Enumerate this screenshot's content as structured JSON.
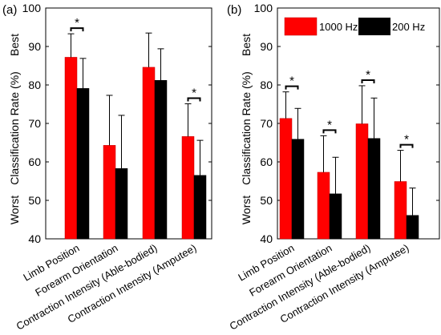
{
  "chart_data": [
    {
      "panel_label": "(a)",
      "type": "bar",
      "ylabel": "Classification Rate (%)",
      "y_annotations": {
        "top": "Best",
        "bottom": "Worst"
      },
      "ylim": [
        40,
        100
      ],
      "yticks": [
        40,
        50,
        60,
        70,
        80,
        90,
        100
      ],
      "categories": [
        "Limb Position",
        "Forearm Orientation",
        "Contraction Intensity (Able-bodied)",
        "Contraction Intensity (Amputee)"
      ],
      "series": [
        {
          "name": "1000 Hz",
          "values": [
            87.2,
            64.3,
            84.6,
            66.6
          ],
          "err_upper": [
            93.3,
            77.3,
            93.5,
            75.1
          ]
        },
        {
          "name": "200 Hz",
          "values": [
            79.1,
            58.3,
            81.2,
            56.5
          ],
          "err_upper": [
            86.9,
            72.1,
            89.4,
            65.6
          ]
        }
      ],
      "significance": [
        "*",
        "",
        "",
        "*"
      ],
      "colors": {
        "1000 Hz": "#ff0000",
        "200 Hz": "#000000"
      },
      "grid": false
    },
    {
      "panel_label": "(b)",
      "type": "bar",
      "ylabel": "Classification Rate (%)",
      "y_annotations": {
        "top": "Best",
        "bottom": "Worst"
      },
      "ylim": [
        40,
        100
      ],
      "yticks": [
        40,
        50,
        60,
        70,
        80,
        90,
        100
      ],
      "categories": [
        "Limb Position",
        "Forearm Orientation",
        "Contraction Intensity (Able-bodied)",
        "Contraction Intensity (Amputee)"
      ],
      "series": [
        {
          "name": "1000 Hz",
          "values": [
            71.3,
            57.3,
            69.9,
            54.9
          ],
          "err_upper": [
            78.2,
            66.8,
            79.8,
            63.0
          ]
        },
        {
          "name": "200 Hz",
          "values": [
            65.9,
            51.7,
            66.1,
            46.1
          ],
          "err_upper": [
            73.9,
            61.2,
            76.6,
            53.2
          ]
        }
      ],
      "significance": [
        "*",
        "*",
        "*",
        "*"
      ],
      "legend": {
        "placement": "top-left",
        "entries": [
          "1000 Hz",
          "200 Hz"
        ]
      },
      "colors": {
        "1000 Hz": "#ff0000",
        "200 Hz": "#000000"
      },
      "grid": false
    }
  ]
}
